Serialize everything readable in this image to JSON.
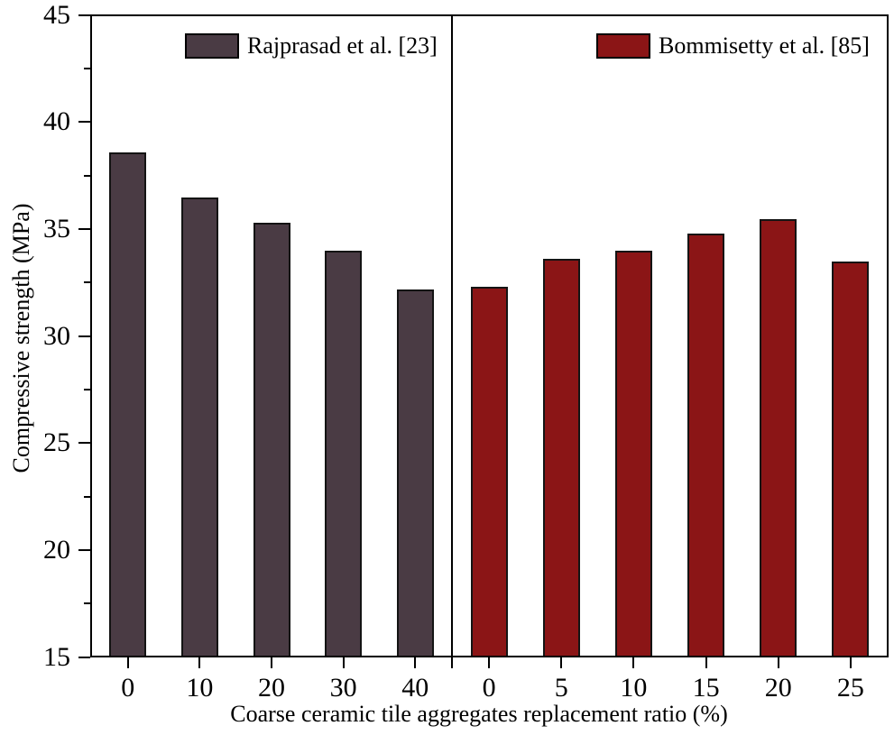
{
  "chart_data": {
    "type": "bar",
    "title": "",
    "xlabel": "Coarse ceramic tile aggregates replacement ratio (%)",
    "ylabel": "Compressive strength (MPa)",
    "ylim": [
      15,
      45
    ],
    "ytick_major_step": 5,
    "ytick_minor_step": 2.5,
    "grid": false,
    "legend_position": "inside-top-per-panel",
    "axis_color": "#000000",
    "bar_edge_color": "#141414",
    "panels": [
      {
        "legend": "Rajprasad et al. [23]",
        "color": "#4a3b44",
        "categories": [
          "0",
          "10",
          "20",
          "30",
          "40"
        ],
        "values": [
          38.6,
          36.5,
          35.3,
          34.0,
          32.2
        ]
      },
      {
        "legend": "Bommisetty et al. [85]",
        "color": "#8b1516",
        "categories": [
          "0",
          "5",
          "10",
          "15",
          "20",
          "25"
        ],
        "values": [
          32.3,
          33.6,
          34.0,
          34.8,
          35.5,
          33.5
        ]
      }
    ]
  }
}
